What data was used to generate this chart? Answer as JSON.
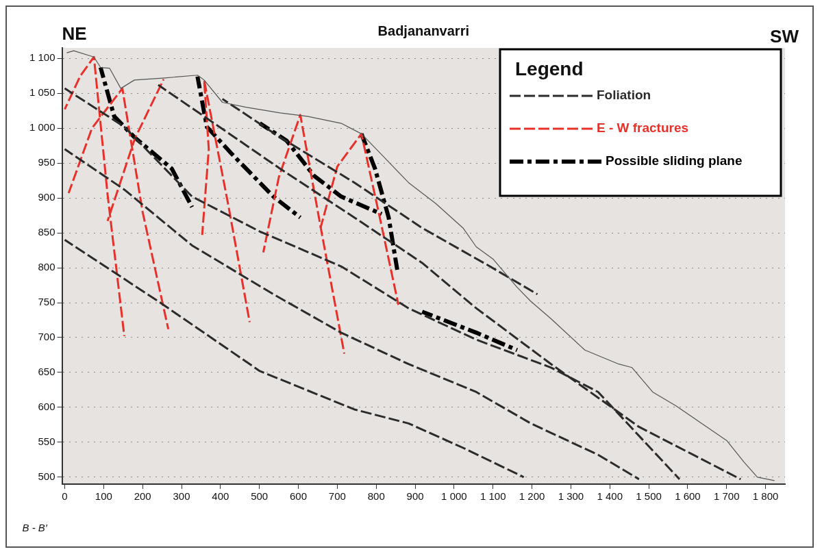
{
  "chart_data": {
    "type": "line",
    "title": "Badjananvarri",
    "annotations": [
      "NE",
      "SW",
      "B - B′"
    ],
    "legend_title": "Legend",
    "legend": "top right",
    "grid": "y",
    "marker": "none",
    "xlim": [
      -7,
      1850
    ],
    "ylim": [
      490,
      1115
    ],
    "xticks": [
      0,
      100,
      200,
      300,
      400,
      500,
      600,
      700,
      800,
      900,
      {
        "value": 1000,
        "label": "1 000"
      },
      {
        "value": 1100,
        "label": "1 100"
      },
      {
        "value": 1200,
        "label": "1 200"
      },
      {
        "value": 1300,
        "label": "1 300"
      },
      {
        "value": 1400,
        "label": "1 400"
      },
      {
        "value": 1500,
        "label": "1 500"
      },
      {
        "value": 1600,
        "label": "1 600"
      },
      {
        "value": 1700,
        "label": "1 700"
      },
      {
        "value": 1800,
        "label": "1 800"
      }
    ],
    "yticks": [
      500,
      550,
      600,
      650,
      700,
      750,
      800,
      850,
      900,
      950,
      {
        "value": 1000,
        "label": "1 000"
      },
      {
        "value": 1050,
        "label": "1 050"
      },
      {
        "value": 1100,
        "label": "1 100"
      }
    ],
    "series": [
      {
        "color": "#555555",
        "line_style": "solid",
        "x": [
          5,
          23,
          75,
          92,
          115,
          144,
          179,
          257,
          341,
          358,
          405,
          466,
          553,
          623,
          710,
          762,
          814,
          883,
          953,
          1023,
          1057,
          1101,
          1162,
          1197,
          1249,
          1336,
          1423,
          1457,
          1510,
          1570,
          1649,
          1701,
          1744,
          1779,
          1823
        ],
        "values": [
          1108,
          1111,
          1102,
          1087,
          1086,
          1057,
          1069,
          1072,
          1076,
          1069,
          1037,
          1030,
          1022,
          1017,
          1007,
          992,
          962,
          922,
          892,
          857,
          830,
          812,
          772,
          752,
          727,
          682,
          662,
          657,
          622,
          602,
          572,
          552,
          522,
          500,
          495
        ]
      },
      {
        "name": "Foliation",
        "color": "#2b2b2b",
        "line_style": "dashed",
        "x": [
          0,
          240,
          501,
          744,
          883,
          1023,
          1179
        ],
        "values": [
          840,
          752,
          652,
          597,
          577,
          542,
          500
        ]
      },
      {
        "color": "#2b2b2b",
        "line_style": "dashed",
        "x": [
          0,
          153,
          327,
          536,
          710,
          883,
          1057,
          1197,
          1370,
          1475
        ],
        "values": [
          970,
          912,
          832,
          762,
          707,
          662,
          622,
          577,
          532,
          497
        ]
      },
      {
        "color": "#2b2b2b",
        "line_style": "dashed",
        "x": [
          0,
          153,
          327,
          501,
          710,
          883,
          1057,
          1249,
          1370,
          1579
        ],
        "values": [
          1057,
          1002,
          902,
          852,
          802,
          742,
          697,
          657,
          622,
          497
        ]
      },
      {
        "color": "#2b2b2b",
        "line_style": "dashed",
        "x": [
          240,
          397,
          553,
          744,
          918,
          1057,
          1249,
          1475,
          1736
        ],
        "values": [
          1062,
          1002,
          942,
          872,
          807,
          742,
          662,
          572,
          497
        ]
      },
      {
        "color": "#2b2b2b",
        "line_style": "dashed",
        "x": [
          405,
          553,
          744,
          918,
          1092,
          1214
        ],
        "values": [
          1042,
          987,
          922,
          857,
          802,
          762
        ]
      },
      {
        "name": "E - W fractures",
        "color": "#e8302a",
        "line_style": "dashed",
        "x": [
          0,
          40,
          75,
          110,
          153
        ],
        "values": [
          1027,
          1075,
          1102,
          905,
          702
        ]
      },
      {
        "color": "#e8302a",
        "line_style": "dashed",
        "x": [
          10,
          70,
          148,
          200,
          266
        ],
        "values": [
          907,
          1000,
          1057,
          880,
          712
        ]
      },
      {
        "color": "#e8302a",
        "line_style": "dashed",
        "x": [
          110,
          180,
          254
        ],
        "values": [
          867,
          985,
          1070
        ]
      },
      {
        "color": "#e8302a",
        "line_style": "dashed",
        "x": [
          353,
          370,
          358,
          420,
          475
        ],
        "values": [
          847,
          970,
          1069,
          890,
          722
        ]
      },
      {
        "color": "#e8302a",
        "line_style": "dashed",
        "x": [
          510,
          550,
          605,
          660,
          718
        ],
        "values": [
          822,
          930,
          1019,
          850,
          677
        ]
      },
      {
        "color": "#e8302a",
        "line_style": "dashed",
        "x": [
          657,
          700,
          762,
          810,
          857
        ],
        "values": [
          857,
          945,
          992,
          870,
          747
        ]
      },
      {
        "name": "Possible sliding plane",
        "color": "#000000",
        "line_style": "dashdot",
        "x": [
          92,
          127,
          179,
          275,
          327
        ],
        "values": [
          1087,
          1017,
          987,
          942,
          887
        ]
      },
      {
        "color": "#000000",
        "line_style": "dashdot",
        "x": [
          341,
          365,
          431,
          536,
          605
        ],
        "values": [
          1074,
          1002,
          962,
          902,
          872
        ]
      },
      {
        "color": "#000000",
        "line_style": "dashdot",
        "x": [
          501,
          570,
          640,
          710,
          814
        ],
        "values": [
          1007,
          982,
          932,
          902,
          877
        ]
      },
      {
        "color": "#000000",
        "line_style": "dashdot",
        "x": [
          762,
          797,
          832,
          854
        ],
        "values": [
          992,
          942,
          872,
          797
        ]
      },
      {
        "color": "#000000",
        "line_style": "dashdot",
        "x": [
          918,
          1057,
          1162
        ],
        "values": [
          737,
          707,
          682
        ]
      }
    ]
  }
}
